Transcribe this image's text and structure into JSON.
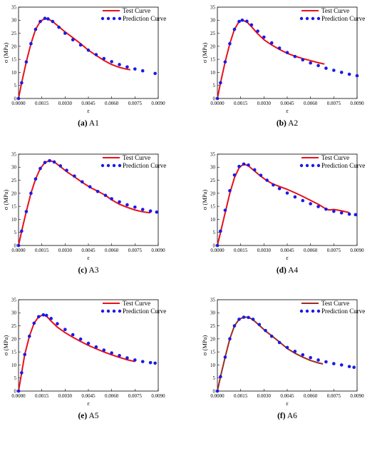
{
  "figure": {
    "legend": {
      "test": "Test Curve",
      "prediction": "Prediction Curve"
    },
    "xlabel": "ε",
    "ylabel": "σ (MPa)",
    "xticks": [
      "0.0000",
      "0.0015",
      "0.0030",
      "0.0045",
      "0.0060",
      "0.0075",
      "0.0090"
    ],
    "yticks": [
      "0",
      "5",
      "10",
      "15",
      "20",
      "25",
      "30",
      "35"
    ],
    "colors": {
      "test": "#e8101a",
      "test_alt": "#9b2d1e",
      "prediction": "#1a1ae6"
    }
  },
  "chart_data": [
    {
      "type": "line",
      "caption_letter": "(a)",
      "caption_name": "A1",
      "xlabel": "ε",
      "ylabel": "σ (MPa)",
      "xlim": [
        0,
        0.009
      ],
      "ylim": [
        0,
        35
      ],
      "legend_position": "top-right",
      "series": [
        {
          "name": "Test Curve",
          "style": "line",
          "color": "#e8101a",
          "x": [
            0,
            0.0002,
            0.0005,
            0.0008,
            0.0011,
            0.0014,
            0.0017,
            0.0019,
            0.0022,
            0.0026,
            0.003,
            0.0035,
            0.004,
            0.0045,
            0.005,
            0.0055,
            0.006,
            0.0065,
            0.007,
            0.0072
          ],
          "y": [
            0,
            6,
            14,
            21,
            26.5,
            29.5,
            30.7,
            30.5,
            29.5,
            27.5,
            25.5,
            23.3,
            21,
            18.5,
            16.5,
            14.6,
            13,
            11.9,
            11.2,
            11
          ]
        },
        {
          "name": "Prediction Curve",
          "style": "dots",
          "color": "#1a1ae6",
          "x": [
            0,
            0.0002,
            0.0005,
            0.0008,
            0.0011,
            0.0014,
            0.0017,
            0.0019,
            0.0022,
            0.0026,
            0.003,
            0.0035,
            0.004,
            0.0045,
            0.005,
            0.0055,
            0.006,
            0.0065,
            0.007,
            0.0075,
            0.008,
            0.0088
          ],
          "y": [
            0,
            6,
            14,
            21,
            26.5,
            29.5,
            30.7,
            30.5,
            29.5,
            27.3,
            25,
            22.5,
            20.5,
            18.5,
            16.8,
            15.3,
            14.1,
            13,
            12.1,
            11.3,
            10.6,
            9.6
          ]
        }
      ]
    },
    {
      "type": "line",
      "caption_letter": "(b)",
      "caption_name": "A2",
      "xlabel": "ε",
      "ylabel": "σ (MPa)",
      "xlim": [
        0,
        0.009
      ],
      "ylim": [
        0,
        35
      ],
      "legend_position": "top-right",
      "series": [
        {
          "name": "Test Curve",
          "style": "line",
          "color": "#e8101a",
          "x": [
            0,
            0.0002,
            0.0005,
            0.0008,
            0.0011,
            0.0014,
            0.0016,
            0.0019,
            0.0022,
            0.0026,
            0.003,
            0.0035,
            0.004,
            0.0045,
            0.005,
            0.0055,
            0.006,
            0.0065,
            0.0069
          ],
          "y": [
            0,
            6,
            14,
            21,
            26.5,
            29.5,
            30,
            29.3,
            27.5,
            24.8,
            22.5,
            20.5,
            18.8,
            17.3,
            16.2,
            15.3,
            14.5,
            13.7,
            13.2
          ]
        },
        {
          "name": "Prediction Curve",
          "style": "dots",
          "color": "#1a1ae6",
          "x": [
            0,
            0.0002,
            0.0005,
            0.0008,
            0.0011,
            0.0014,
            0.0016,
            0.0019,
            0.0022,
            0.0026,
            0.003,
            0.0035,
            0.004,
            0.0045,
            0.005,
            0.0055,
            0.006,
            0.0065,
            0.007,
            0.0075,
            0.008,
            0.0085,
            0.009
          ],
          "y": [
            0,
            6,
            14,
            21,
            26.5,
            29.5,
            30,
            29.6,
            28.2,
            25.8,
            23.5,
            21.3,
            19.3,
            17.6,
            16.1,
            14.8,
            13.6,
            12.6,
            11.6,
            10.8,
            10,
            9.3,
            8.7
          ]
        }
      ]
    },
    {
      "type": "line",
      "caption_letter": "(c)",
      "caption_name": "A3",
      "xlabel": "ε",
      "ylabel": "σ (MPa)",
      "xlim": [
        0,
        0.009
      ],
      "ylim": [
        0,
        35
      ],
      "legend_position": "top-right",
      "series": [
        {
          "name": "Test Curve",
          "style": "line",
          "color": "#e8101a",
          "x": [
            0,
            0.0002,
            0.0005,
            0.0008,
            0.0011,
            0.0014,
            0.0017,
            0.002,
            0.0023,
            0.0027,
            0.0031,
            0.0036,
            0.0041,
            0.0046,
            0.0051,
            0.0056,
            0.006,
            0.0065,
            0.007,
            0.0075,
            0.008,
            0.0085
          ],
          "y": [
            0,
            5.5,
            13,
            20,
            25.5,
            29.5,
            31.8,
            32.5,
            32,
            30.2,
            28.3,
            26.3,
            24.2,
            22.3,
            20.8,
            19.2,
            17.5,
            15.8,
            14.6,
            13.6,
            12.9,
            12.5
          ]
        },
        {
          "name": "Prediction Curve",
          "style": "dots",
          "color": "#1a1ae6",
          "x": [
            0,
            0.0002,
            0.0005,
            0.0008,
            0.0011,
            0.0014,
            0.0017,
            0.002,
            0.0023,
            0.0027,
            0.0031,
            0.0036,
            0.0041,
            0.0046,
            0.0051,
            0.0056,
            0.006,
            0.0065,
            0.007,
            0.0075,
            0.008,
            0.0085,
            0.0089
          ],
          "y": [
            0,
            5.5,
            13,
            20,
            25.5,
            29.5,
            31.8,
            32.5,
            32,
            30.5,
            28.8,
            26.6,
            24.4,
            22.5,
            20.7,
            19.2,
            17.9,
            16.7,
            15.6,
            14.7,
            13.8,
            13.2,
            12.8
          ]
        }
      ]
    },
    {
      "type": "line",
      "caption_letter": "(d)",
      "caption_name": "A4",
      "xlabel": "ε",
      "ylabel": "σ (MPa)",
      "xlim": [
        0,
        0.009
      ],
      "ylim": [
        0,
        35
      ],
      "legend_position": "top-right",
      "series": [
        {
          "name": "Test Curve",
          "style": "line",
          "color": "#e8101a",
          "x": [
            0,
            0.0002,
            0.0005,
            0.0008,
            0.0011,
            0.0014,
            0.0017,
            0.002,
            0.0024,
            0.0028,
            0.0032,
            0.0036,
            0.004,
            0.0045,
            0.005,
            0.0055,
            0.006,
            0.0065,
            0.007,
            0.0072,
            0.0075,
            0.008,
            0.0085
          ],
          "y": [
            0,
            5,
            12.5,
            20,
            26,
            29.8,
            31.2,
            30.5,
            28.5,
            26.5,
            24.8,
            23.5,
            22.6,
            21.5,
            20.2,
            18.8,
            17.3,
            15.8,
            14,
            13.6,
            13.8,
            13.3,
            12.6
          ]
        },
        {
          "name": "Prediction Curve",
          "style": "dots",
          "color": "#1a1ae6",
          "x": [
            0,
            0.0002,
            0.0005,
            0.0008,
            0.0011,
            0.0014,
            0.0017,
            0.002,
            0.0024,
            0.0028,
            0.0032,
            0.0036,
            0.004,
            0.0045,
            0.005,
            0.0055,
            0.006,
            0.0065,
            0.007,
            0.0075,
            0.008,
            0.0085,
            0.0089
          ],
          "y": [
            0,
            5.5,
            13.5,
            21,
            27,
            30.3,
            31.2,
            30.8,
            29,
            26.9,
            25,
            23.2,
            21.8,
            20.1,
            18.6,
            17.2,
            16,
            14.9,
            13.9,
            13.1,
            12.5,
            12,
            11.8
          ]
        }
      ]
    },
    {
      "type": "line",
      "caption_letter": "(e)",
      "caption_name": "A5",
      "xlabel": "ε",
      "ylabel": "σ (MPa)",
      "xlim": [
        0,
        0.009
      ],
      "ylim": [
        0,
        35
      ],
      "legend_position": "top-right",
      "series": [
        {
          "name": "Test Curve",
          "style": "line",
          "color": "#e8101a",
          "x": [
            0,
            0.0002,
            0.0004,
            0.0007,
            0.001,
            0.0013,
            0.0016,
            0.0018,
            0.0021,
            0.0025,
            0.003,
            0.0035,
            0.004,
            0.0045,
            0.005,
            0.0055,
            0.006,
            0.0065,
            0.007,
            0.0075
          ],
          "y": [
            0,
            7,
            14,
            21,
            26,
            28.5,
            29.2,
            28.7,
            26.8,
            24.5,
            22.4,
            20.6,
            19,
            17.5,
            16.2,
            15,
            13.9,
            12.9,
            12,
            11.3
          ]
        },
        {
          "name": "Prediction Curve",
          "style": "dots",
          "color": "#1a1ae6",
          "x": [
            0,
            0.0002,
            0.0004,
            0.0007,
            0.001,
            0.0013,
            0.0016,
            0.0018,
            0.0021,
            0.0025,
            0.003,
            0.0035,
            0.004,
            0.0045,
            0.005,
            0.0055,
            0.006,
            0.0065,
            0.007,
            0.0075,
            0.008,
            0.0085,
            0.0088
          ],
          "y": [
            0,
            7,
            14,
            21,
            26,
            28.5,
            29.2,
            29,
            27.8,
            25.8,
            23.6,
            21.6,
            19.9,
            18.3,
            16.9,
            15.7,
            14.6,
            13.6,
            12.7,
            11.9,
            11.3,
            10.9,
            10.7
          ]
        }
      ]
    },
    {
      "type": "line",
      "caption_letter": "(f)",
      "caption_name": "A6",
      "xlabel": "ε",
      "ylabel": "σ (MPa)",
      "xlim": [
        0,
        0.009
      ],
      "ylim": [
        0,
        35
      ],
      "legend_position": "top-right",
      "series": [
        {
          "name": "Test Curve",
          "style": "line",
          "color": "#9b2d1e",
          "x": [
            0,
            0.0002,
            0.0005,
            0.0008,
            0.0011,
            0.0014,
            0.0017,
            0.002,
            0.0023,
            0.0027,
            0.0031,
            0.0035,
            0.004,
            0.0045,
            0.005,
            0.0055,
            0.006,
            0.0065,
            0.0068
          ],
          "y": [
            0,
            5.5,
            13,
            20,
            25,
            27.5,
            28.3,
            28.3,
            27.3,
            25.2,
            23,
            21.2,
            18.8,
            16.3,
            14.5,
            13,
            11.7,
            10.8,
            10.4
          ]
        },
        {
          "name": "Prediction Curve",
          "style": "dots",
          "color": "#1a1ae6",
          "x": [
            0,
            0.0002,
            0.0005,
            0.0008,
            0.0011,
            0.0014,
            0.0017,
            0.002,
            0.0023,
            0.0027,
            0.0031,
            0.0035,
            0.004,
            0.0045,
            0.005,
            0.0055,
            0.006,
            0.0065,
            0.007,
            0.0075,
            0.008,
            0.0085,
            0.0088
          ],
          "y": [
            0,
            5.5,
            13,
            20,
            25,
            27.5,
            28.3,
            28.2,
            27.5,
            25.5,
            23.2,
            21,
            18.6,
            16.7,
            15.2,
            13.9,
            12.8,
            11.9,
            11.2,
            10.5,
            10,
            9.4,
            9.1
          ]
        }
      ]
    }
  ]
}
